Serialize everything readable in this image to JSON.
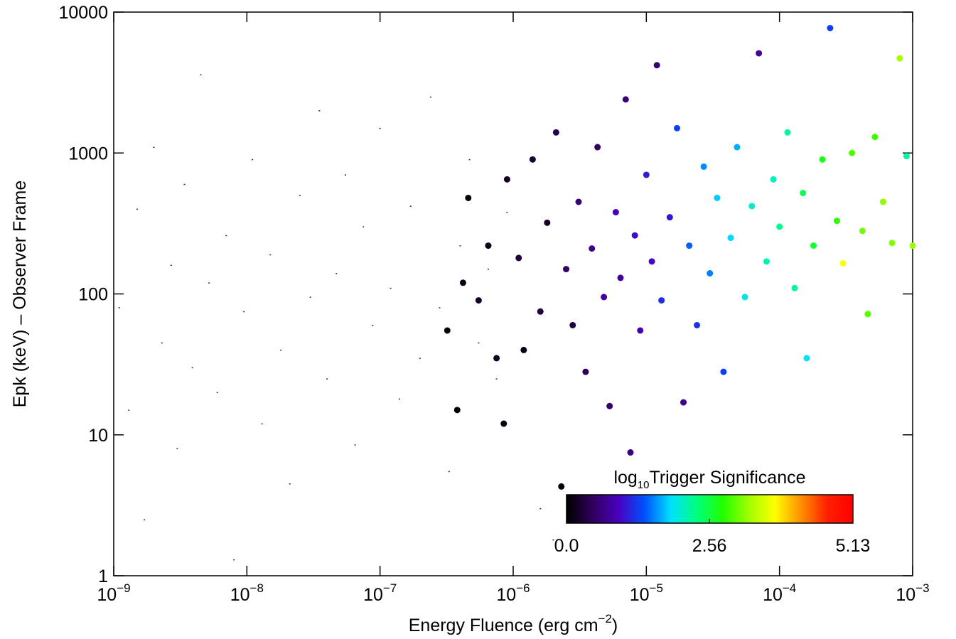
{
  "chart_data": {
    "type": "scatter",
    "xlabel": {
      "text": "Energy Fluence (erg cm",
      "superscript": "−2",
      "suffix": ")"
    },
    "ylabel": "Epk (keV) – Observer Frame",
    "xscale": "log",
    "yscale": "log",
    "xlim": [
      1e-09,
      0.001
    ],
    "ylim": [
      1,
      10000
    ],
    "xticks": [
      {
        "value": 1e-09,
        "label": "10",
        "superscript": "−9"
      },
      {
        "value": 1e-08,
        "label": "10",
        "superscript": "−8"
      },
      {
        "value": 1e-07,
        "label": "10",
        "superscript": "−7"
      },
      {
        "value": 1e-06,
        "label": "10",
        "superscript": "−6"
      },
      {
        "value": 1e-05,
        "label": "10",
        "superscript": "−5"
      },
      {
        "value": 0.0001,
        "label": "10",
        "superscript": "−4"
      },
      {
        "value": 0.001,
        "label": "10",
        "superscript": "−3"
      }
    ],
    "yticks": [
      1,
      10,
      100,
      1000,
      10000
    ],
    "series": [
      {
        "marker": "dot",
        "color": "#5a1050",
        "x": [
          1.1e-09,
          1.3e-09,
          1.5e-09,
          1.7e-09,
          2e-09,
          2.3e-09,
          2.7e-09,
          3e-09,
          3.4e-09,
          3.9e-09,
          4.5e-09,
          5.2e-09,
          6e-09,
          7e-09,
          8e-09,
          9.5e-09,
          1.1e-08,
          1.3e-08,
          1.5e-08,
          1.8e-08,
          2.1e-08,
          2.5e-08,
          3e-08,
          3.5e-08,
          4e-08,
          4.7e-08,
          5.5e-08,
          6.5e-08,
          7.5e-08,
          8.8e-08,
          1e-07,
          1.2e-07,
          1.4e-07,
          1.7e-07,
          2e-07,
          2.4e-07,
          2.8e-07,
          3.3e-07,
          4e-07,
          4.7e-07,
          5.5e-07,
          6.5e-07,
          7.5e-07,
          9e-07,
          1.6e-06,
          2e-06
        ],
        "y": [
          80,
          15,
          400,
          2.5,
          1100,
          45,
          160,
          8,
          600,
          30,
          3600,
          120,
          20,
          260,
          1.3,
          75,
          900,
          12,
          190,
          40,
          4.5,
          500,
          95,
          2000,
          25,
          140,
          700,
          8.5,
          300,
          60,
          1500,
          110,
          18,
          420,
          35,
          2500,
          80,
          5.5,
          220,
          900,
          45,
          150,
          25,
          380,
          3,
          1.8
        ]
      },
      {
        "marker": "circle",
        "x": [
          3.2e-07,
          3.8e-07,
          4.2e-07,
          4.6e-07,
          5.5e-07,
          6.5e-07,
          7.5e-07,
          8.5e-07,
          9e-07,
          1.1e-06,
          1.2e-06,
          1.4e-06,
          1.6e-06,
          1.8e-06,
          2.1e-06,
          2.3e-06,
          2.5e-06,
          2.8e-06,
          3.1e-06,
          3.5e-06,
          3.9e-06,
          4.3e-06,
          4.8e-06,
          5.3e-06,
          5.9e-06,
          6.4e-06,
          7e-06,
          7.6e-06,
          8.2e-06,
          9e-06,
          1e-05,
          1.1e-05,
          1.2e-05,
          1.3e-05,
          1.5e-05,
          1.7e-05,
          1.9e-05,
          2.1e-05,
          2.4e-05,
          2.7e-05,
          3e-05,
          3.4e-05,
          3.8e-05,
          4.3e-05,
          4.8e-05,
          5.5e-05,
          6.2e-05,
          7e-05,
          8e-05,
          9e-05,
          0.0001,
          0.000115,
          0.00013,
          0.00015,
          0.00016,
          0.00018,
          0.00021,
          0.00024,
          0.00027,
          0.0003,
          0.00035,
          0.00042,
          0.00046,
          0.00052,
          0.0006,
          0.0007,
          0.0008,
          0.0009,
          0.001
        ],
        "y": [
          55,
          15,
          120,
          480,
          90,
          220,
          35,
          12,
          650,
          180,
          40,
          900,
          75,
          320,
          1400,
          4.3,
          150,
          60,
          450,
          28,
          210,
          1100,
          95,
          16,
          380,
          130,
          2400,
          7.5,
          260,
          55,
          700,
          170,
          4200,
          90,
          350,
          1500,
          17,
          220,
          60,
          800,
          140,
          480,
          28,
          250,
          1100,
          95,
          420,
          5100,
          170,
          650,
          300,
          1400,
          110,
          520,
          35,
          220,
          900,
          7700,
          330,
          165,
          1000,
          280,
          72,
          1300,
          450,
          230,
          4700,
          950,
          220
        ],
        "c": [
          0.05,
          0.02,
          0.1,
          0.05,
          0.2,
          0.1,
          0.15,
          0.05,
          0.2,
          0.3,
          0.1,
          0.25,
          0.35,
          0.2,
          0.4,
          0.05,
          0.5,
          0.3,
          0.6,
          0.45,
          0.7,
          0.5,
          0.8,
          0.55,
          0.9,
          0.75,
          0.6,
          0.65,
          1.0,
          0.85,
          1.1,
          0.95,
          0.6,
          1.2,
          1.05,
          1.3,
          0.7,
          1.45,
          1.2,
          1.6,
          1.55,
          1.8,
          1.3,
          1.85,
          1.7,
          1.95,
          2.05,
          0.8,
          2.15,
          2.1,
          2.3,
          2.2,
          2.25,
          2.5,
          1.9,
          2.6,
          2.7,
          1.3,
          2.85,
          3.7,
          2.95,
          3.1,
          3.0,
          2.9,
          3.2,
          3.15,
          3.3,
          2.2,
          3.25
        ]
      }
    ],
    "colorbar": {
      "title": {
        "text": "log",
        "subscript": "10",
        "suffix": "Trigger Significance"
      },
      "clim": [
        0,
        5.13
      ],
      "ticks": [
        {
          "value": 0,
          "label": "0.0"
        },
        2.56,
        5.13
      ],
      "colormap": [
        "#000000",
        "#30005a",
        "#4a00c0",
        "#0050ff",
        "#00e0ff",
        "#00ff80",
        "#20ff00",
        "#a0ff00",
        "#ffff00",
        "#ff9000",
        "#ff2000",
        "#ff0000"
      ]
    }
  }
}
